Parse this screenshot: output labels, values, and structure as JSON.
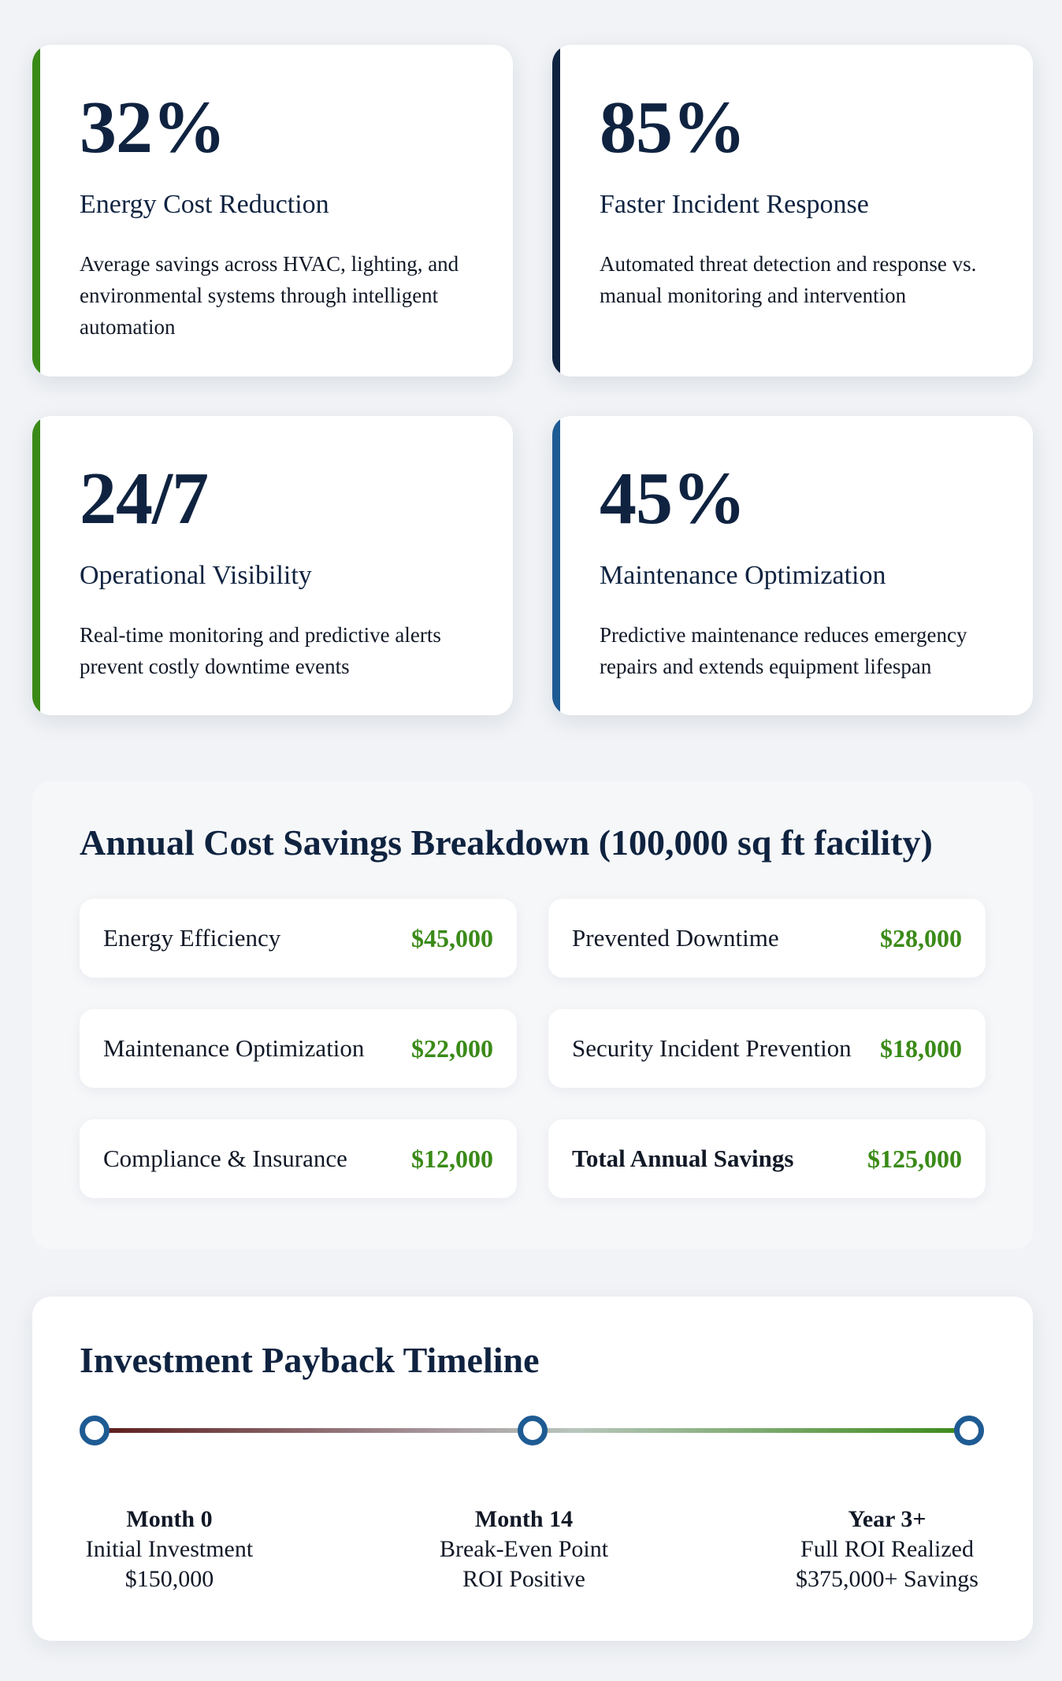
{
  "metrics": [
    {
      "value": "32%",
      "title": "Energy Cost Reduction",
      "description": "Average savings across HVAC, lighting, and environmental systems through intelligent automation",
      "accent": "#3a8a18"
    },
    {
      "value": "85%",
      "title": "Faster Incident Response",
      "description": "Automated threat detection and response vs. manual monitoring and intervention",
      "accent": "#0f2340"
    },
    {
      "value": "24/7",
      "title": "Operational Visibility",
      "description": "Real-time monitoring and predictive alerts prevent costly downtime events",
      "accent": "#3a8a18"
    },
    {
      "value": "45%",
      "title": "Maintenance Optimization",
      "description": "Predictive maintenance reduces emergency repairs and extends equipment lifespan",
      "accent": "#1e5b93"
    }
  ],
  "savings": {
    "title": "Annual Cost Savings Breakdown (100,000 sq ft facility)",
    "items": [
      {
        "label": "Energy Efficiency",
        "amount": "$45,000"
      },
      {
        "label": "Prevented Downtime",
        "amount": "$28,000"
      },
      {
        "label": "Maintenance Optimization",
        "amount": "$22,000"
      },
      {
        "label": "Security Incident Prevention",
        "amount": "$18,000"
      },
      {
        "label": "Compliance & Insurance",
        "amount": "$12,000"
      },
      {
        "label": "Total Annual Savings",
        "amount": "$125,000"
      }
    ],
    "amount_color": "#3a8a18"
  },
  "timeline": {
    "title": "Investment Payback Timeline",
    "milestones": [
      {
        "title": "Month 0",
        "line1": "Initial Investment",
        "line2": "$150,000"
      },
      {
        "title": "Month 14",
        "line1": "Break-Even Point",
        "line2": "ROI Positive"
      },
      {
        "title": "Year 3+",
        "line1": "Full ROI Realized",
        "line2": "$375,000+ Savings"
      }
    ],
    "node_color": "#1e5b93"
  }
}
